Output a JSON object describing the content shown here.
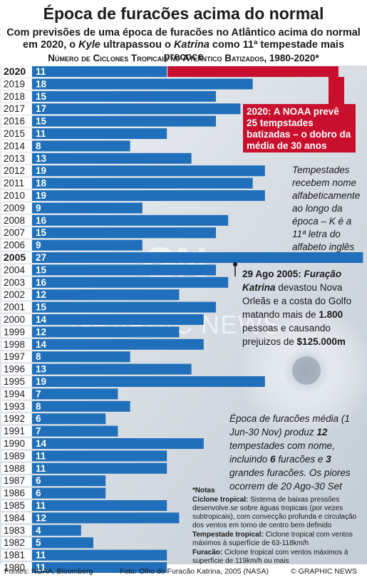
{
  "title": "Época de furacões acima do normal",
  "subtitle_parts": {
    "p1": "Com previsões de uma época de furacões no Atlântico acima do normal em 2020, o ",
    "kyle": "Kyle",
    "p2": " ultrapassou o ",
    "katrina": "Katrina",
    "p3": " como 11ª tempestade mais precoce"
  },
  "chart_title": "Número de Ciclones Tropicais no Atlântico Batizados, 1980-2020*",
  "callout_2020": "2020: A NOAA prevê 25 tempstades batizadas – o dobro da média de 30 anos",
  "note_names": "Tempestades recebem nome alfabeticamente ao longo da época – K é a 11ª letra do alfabeto inglês",
  "katrina_note": {
    "date": "29 Ago 2005: ",
    "title": "Furação Katrina",
    "t1": " devastou Nova Orleãs e a costa do Golfo matando mais de ",
    "deaths": "1.800",
    "t2": " pessoas e causando prejuizos de ",
    "damage": "$125.000m"
  },
  "season_note": {
    "t1": "Época de furacões média (1 Jun-30 Nov) produz ",
    "n1": "12",
    "t2": " tempestades com nome, incluindo ",
    "n2": "6",
    "t3": " furacões e ",
    "n3": "3",
    "t4": " grandes furacões. Os piores ocorrem de 20 Ago-30 Set"
  },
  "definitions": {
    "heading": "*Notas",
    "d1_term": "Ciclone tropical:",
    "d1_text": " Sistema de baixas pressões desenvolve.se sobre águas tropicais (por vezes subtropicais), com convecção profunda e circulação dos ventos em torno de centro bem definido",
    "d2_term": "Tempestade tropical:",
    "d2_text": " Ciclone tropical com ventos máximos à superfície de 63-118km/h",
    "d3_term": "Furacão:",
    "d3_text": " Ciclone tropical com ventos máximos à superfície de 119km/h ou mais"
  },
  "footer": {
    "sources": "Fontes: NOAA, Bloomberg",
    "photo": "Foto: Olho do Furacão Katrina, 2005 (NASA)",
    "brand": "© GRAPHIC NEWS"
  },
  "watermark": {
    "logo": "GN",
    "text": "GRAPHIC NEWS"
  },
  "colors": {
    "bar": "#1f6fba",
    "highlight": "#c8102e",
    "label_bg": "#ffffff"
  },
  "chart_data": {
    "type": "bar",
    "orientation": "horizontal",
    "title": "Número de Ciclones Tropicais no Atlântico Batizados, 1980-2020*",
    "bold_categories": [
      "2020",
      "2005"
    ],
    "highlight_category": "2020",
    "highlight_note": "2020 value is so far (11); bar extended toward forecast of 25",
    "categories": [
      "2020",
      "2019",
      "2018",
      "2017",
      "2016",
      "2015",
      "2014",
      "2013",
      "2012",
      "2011",
      "2010",
      "2009",
      "2008",
      "2007",
      "2006",
      "2005",
      "2004",
      "2003",
      "2002",
      "2001",
      "2000",
      "1999",
      "1998",
      "1997",
      "1996",
      "1995",
      "1994",
      "1993",
      "1992",
      "1991",
      "1990",
      "1989",
      "1988",
      "1987",
      "1986",
      "1985",
      "1984",
      "1983",
      "1982",
      "1981",
      "1980"
    ],
    "values": [
      11,
      18,
      15,
      17,
      15,
      11,
      8,
      13,
      19,
      18,
      19,
      9,
      16,
      15,
      9,
      27,
      15,
      16,
      12,
      15,
      14,
      12,
      14,
      8,
      13,
      19,
      7,
      8,
      6,
      7,
      14,
      11,
      11,
      6,
      6,
      11,
      12,
      4,
      5,
      11,
      11
    ],
    "forecast_2020": 25,
    "xlim": [
      0,
      27
    ]
  }
}
